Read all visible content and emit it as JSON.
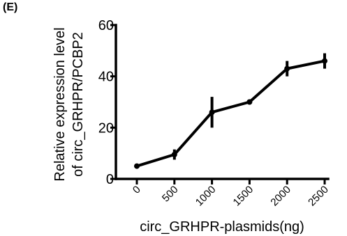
{
  "panel_label": "(E)",
  "chart_data": {
    "type": "line",
    "x": [
      "0",
      "500",
      "1000",
      "1500",
      "2000",
      "2500"
    ],
    "series": [
      {
        "values": [
          5,
          9.5,
          26,
          30,
          43,
          46
        ],
        "error": [
          0.5,
          2,
          6,
          0.8,
          3,
          3
        ]
      }
    ],
    "ylim": [
      0,
      60
    ],
    "yticks": [
      0,
      20,
      40,
      60
    ],
    "xlabel": "circ_GRHPR-plasmids(ng)",
    "ylabel": [
      "Relative expression level",
      "of circ_GRHPR/PCBP2"
    ],
    "grid": false
  }
}
